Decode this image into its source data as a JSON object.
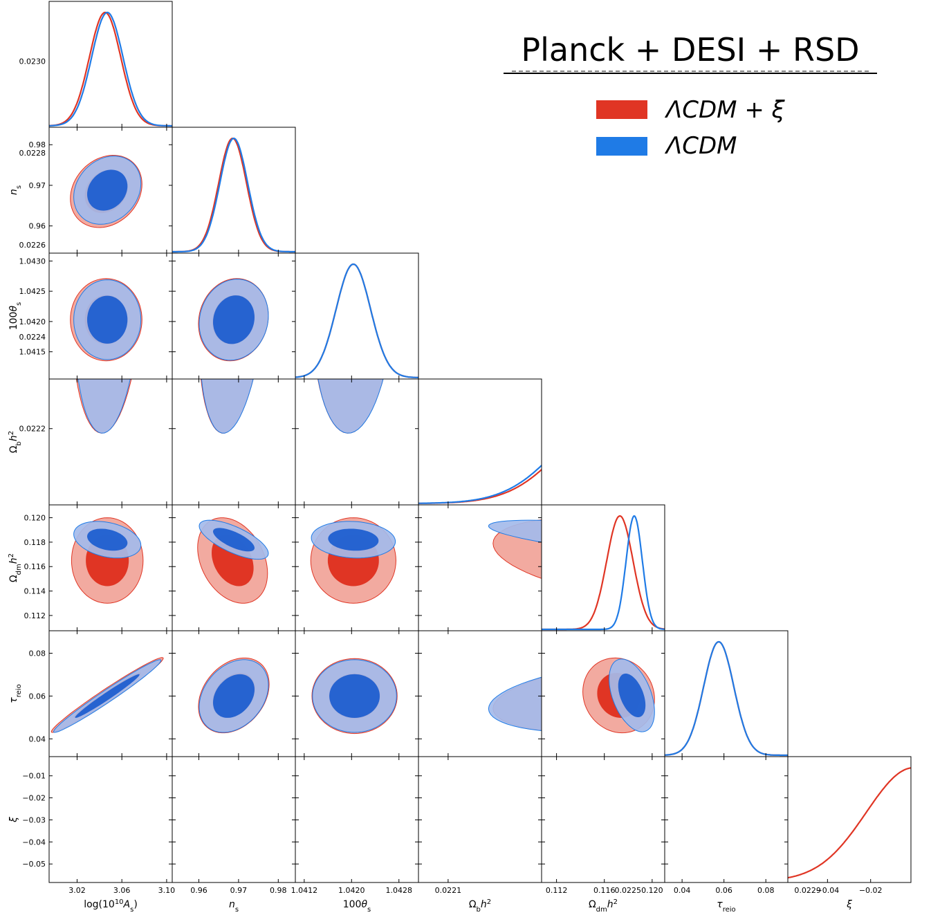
{
  "chart_data": {
    "type": "triangle-corner-plot",
    "title": "Planck + DESI + RSD",
    "legend": {
      "placement": "top-right",
      "entries": [
        {
          "label": "ΛCDM + ξ",
          "color": "#e03524"
        },
        {
          "label": "ΛCDM",
          "color": "#1f7be6"
        }
      ]
    },
    "colors": {
      "red": "#e03524",
      "red_light": "#f2aaa0",
      "blue": "#1f7be6",
      "blue_dark": "#1f5fd0",
      "blue_light": "#a4bbea"
    },
    "parameters": [
      {
        "key": "logA",
        "label": "log(10¹⁰A_s)",
        "label_main": "log(10",
        "label_sup": "10",
        "label_rest": "A",
        "label_sub": "s",
        "label_end": ")",
        "range": [
          2.995,
          3.105
        ],
        "ticks": [
          "3.02",
          "3.06",
          "3.10"
        ],
        "tick_values": [
          3.02,
          3.06,
          3.1
        ]
      },
      {
        "key": "ns",
        "label": "n_s",
        "range": [
          0.9533,
          0.9843
        ],
        "ticks": [
          "0.96",
          "0.97",
          "0.98"
        ],
        "tick_values": [
          0.96,
          0.97,
          0.98
        ]
      },
      {
        "key": "theta",
        "label": "100θ_s",
        "range": [
          1.04105,
          1.04313
        ],
        "ticks": [
          "1.0415",
          "1.0420",
          "1.0425",
          "1.0430"
        ],
        "xticks": [
          "1.0412",
          "1.0420",
          "1.0428"
        ],
        "tick_values": [
          1.0415,
          1.042,
          1.0425,
          1.043
        ],
        "xtick_values": [
          1.0412,
          1.042,
          1.0428
        ]
      },
      {
        "key": "omb",
        "label": "Ω_b h²",
        "range": [
          0.022034,
          0.022308
        ],
        "ticks": [
          "0.0222",
          "0.0224",
          "0.0226",
          "0.0228",
          "0.0230"
        ],
        "xticks": [
          "0.0221",
          "0.0225",
          "0.0229"
        ],
        "tick_values": [
          0.0222,
          0.0224,
          0.0226,
          0.0228,
          0.023
        ],
        "xtick_values": [
          0.0221,
          0.0225,
          0.0229
        ]
      },
      {
        "key": "omdm",
        "label": "Ω_dm h²",
        "range": [
          0.11075,
          0.12105
        ],
        "ticks": [
          "0.112",
          "0.114",
          "0.116",
          "0.118",
          "0.120"
        ],
        "xticks": [
          "0.112",
          "0.116",
          "0.120"
        ],
        "tick_values": [
          0.112,
          0.114,
          0.116,
          0.118,
          0.12
        ],
        "xtick_values": [
          0.112,
          0.116,
          0.12
        ]
      },
      {
        "key": "tau",
        "label": "τ_reio",
        "range": [
          0.0317,
          0.0905
        ],
        "ticks": [
          "0.04",
          "0.06",
          "0.08"
        ],
        "tick_values": [
          0.04,
          0.06,
          0.08
        ]
      },
      {
        "key": "xi",
        "label": "ξ",
        "range": [
          -0.0584,
          -0.0013
        ],
        "ticks": [
          "−0.05",
          "−0.04",
          "−0.03",
          "−0.02",
          "−0.01"
        ],
        "xticks": [
          "−0.04",
          "−0.02"
        ],
        "tick_values": [
          -0.05,
          -0.04,
          -0.03,
          -0.02,
          -0.01
        ],
        "xtick_values": [
          -0.04,
          -0.02
        ]
      }
    ],
    "posteriors_1d": {
      "LCDM_xi": [
        {
          "param": "logA",
          "mean": 3.045,
          "sigma": 0.014
        },
        {
          "param": "ns",
          "mean": 0.9685,
          "sigma": 0.0035
        },
        {
          "param": "theta",
          "mean": 1.04203,
          "sigma": 0.00029
        },
        {
          "param": "omb",
          "mean": 0.02251,
          "sigma": 0.00013
        },
        {
          "param": "omdm",
          "mean": 0.1173,
          "sigma": 0.0011
        },
        {
          "param": "tau",
          "mean": 0.0575,
          "sigma": 0.0072
        },
        {
          "param": "xi",
          "mode": 0.0,
          "sigma": 0.022,
          "note": "one-sided, peaks at ξ = 0"
        }
      ],
      "LCDM": [
        {
          "param": "logA",
          "mean": 3.047,
          "sigma": 0.014
        },
        {
          "param": "ns",
          "mean": 0.9688,
          "sigma": 0.0035
        },
        {
          "param": "theta",
          "mean": 1.04203,
          "sigma": 0.00029
        },
        {
          "param": "omb",
          "mean": 0.0225,
          "sigma": 0.00013
        },
        {
          "param": "omdm",
          "mean": 0.1185,
          "sigma": 0.00068
        },
        {
          "param": "tau",
          "mean": 0.0575,
          "sigma": 0.0072
        }
      ]
    },
    "contours_2d": [
      {
        "x": "logA",
        "y": "ns",
        "LCDM_xi": {
          "cx": 3.046,
          "cy": 0.9685,
          "rx": 0.032,
          "ry": 0.0089,
          "rho": 0.2
        },
        "LCDM": {
          "cx": 3.047,
          "cy": 0.9688,
          "rx": 0.03,
          "ry": 0.0084,
          "rho": 0.2
        }
      },
      {
        "x": "logA",
        "y": "theta",
        "LCDM_xi": {
          "cx": 3.046,
          "cy": 1.04203,
          "rx": 0.032,
          "ry": 0.00068,
          "rho": 0.0
        },
        "LCDM": {
          "cx": 3.047,
          "cy": 1.04203,
          "rx": 0.03,
          "ry": 0.00066,
          "rho": 0.0
        }
      },
      {
        "x": "logA",
        "y": "omb",
        "LCDM_xi": {
          "cx": 3.047,
          "cy": 0.02251,
          "rx": 0.032,
          "ry": 0.00032,
          "rho": 0.15
        },
        "LCDM": {
          "cx": 3.047,
          "cy": 0.0225,
          "rx": 0.03,
          "ry": 0.00031,
          "rho": 0.15
        }
      },
      {
        "x": "logA",
        "y": "omdm",
        "LCDM_xi": {
          "cx": 3.047,
          "cy": 0.1165,
          "rx": 0.032,
          "ry": 0.0035,
          "rho": 0.0
        },
        "LCDM": {
          "cx": 3.047,
          "cy": 0.1182,
          "rx": 0.03,
          "ry": 0.0015,
          "rho": -0.3
        }
      },
      {
        "x": "logA",
        "y": "tau",
        "LCDM_xi": {
          "cx": 3.047,
          "cy": 0.0605,
          "rx": 0.05,
          "ry": 0.0175,
          "rho": 0.98
        },
        "LCDM": {
          "cx": 3.047,
          "cy": 0.06,
          "rx": 0.048,
          "ry": 0.017,
          "rho": 0.98
        }
      },
      {
        "x": "logA",
        "y": "xi",
        "LCDM_xi": {
          "cx": 3.047,
          "floor": -0.041,
          "inner_floor": -0.0245,
          "rx": 0.031
        }
      },
      {
        "x": "ns",
        "y": "theta",
        "LCDM_xi": {
          "cx": 0.9687,
          "cy": 1.04203,
          "rx": 0.0088,
          "ry": 0.00068,
          "rho": 0.1
        },
        "LCDM": {
          "cx": 0.9688,
          "cy": 1.04203,
          "rx": 0.0087,
          "ry": 0.00067,
          "rho": 0.1
        }
      },
      {
        "x": "ns",
        "y": "omb",
        "LCDM_xi": {
          "cx": 0.9688,
          "cy": 0.02251,
          "rx": 0.0089,
          "ry": 0.00032,
          "rho": 0.3
        },
        "LCDM": {
          "cx": 0.9688,
          "cy": 0.0225,
          "rx": 0.0087,
          "ry": 0.00031,
          "rho": 0.3
        }
      },
      {
        "x": "ns",
        "y": "omdm",
        "LCDM_xi": {
          "cx": 0.9685,
          "cy": 0.1165,
          "rx": 0.0088,
          "ry": 0.0035,
          "rho": -0.3
        },
        "LCDM": {
          "cx": 0.9688,
          "cy": 0.1182,
          "rx": 0.0087,
          "ry": 0.0016,
          "rho": -0.7
        }
      },
      {
        "x": "ns",
        "y": "tau",
        "LCDM_xi": {
          "cx": 0.9688,
          "cy": 0.0603,
          "rx": 0.0089,
          "ry": 0.0175,
          "rho": 0.3
        },
        "LCDM": {
          "cx": 0.9688,
          "cy": 0.06,
          "rx": 0.0087,
          "ry": 0.017,
          "rho": 0.3
        }
      },
      {
        "x": "ns",
        "y": "xi",
        "LCDM_xi": {
          "cx": 0.9688,
          "floor": -0.041,
          "inner_floor": -0.0235,
          "rx": 0.0088
        }
      },
      {
        "x": "theta",
        "y": "omb",
        "LCDM_xi": {
          "cx": 1.04205,
          "cy": 0.02251,
          "rx": 0.00072,
          "ry": 0.00032,
          "rho": 0.15
        },
        "LCDM": {
          "cx": 1.04205,
          "cy": 0.0225,
          "rx": 0.00071,
          "ry": 0.00031,
          "rho": 0.15
        }
      },
      {
        "x": "theta",
        "y": "omdm",
        "LCDM_xi": {
          "cx": 1.04203,
          "cy": 0.1165,
          "rx": 0.00072,
          "ry": 0.0035,
          "rho": 0.0
        },
        "LCDM": {
          "cx": 1.04203,
          "cy": 0.1182,
          "rx": 0.00071,
          "ry": 0.0015,
          "rho": -0.1
        }
      },
      {
        "x": "theta",
        "y": "tau",
        "LCDM_xi": {
          "cx": 1.04205,
          "cy": 0.06,
          "rx": 0.00072,
          "ry": 0.0175,
          "rho": 0.0
        },
        "LCDM": {
          "cx": 1.04205,
          "cy": 0.06,
          "rx": 0.00071,
          "ry": 0.017,
          "rho": 0.0
        }
      },
      {
        "x": "theta",
        "y": "xi",
        "LCDM_xi": {
          "cx": 1.04205,
          "floor": -0.041,
          "inner_floor": -0.0235,
          "rx": 0.00072
        }
      },
      {
        "x": "omb",
        "y": "omdm",
        "LCDM_xi": {
          "cx": 0.02252,
          "cy": 0.1165,
          "rx": 0.00032,
          "ry": 0.0035,
          "rho": -0.4
        },
        "LCDM": {
          "cx": 0.0225,
          "cy": 0.1182,
          "rx": 0.00031,
          "ry": 0.0016,
          "rho": -0.7
        }
      },
      {
        "x": "omb",
        "y": "tau",
        "LCDM_xi": {
          "cx": 0.02252,
          "cy": 0.0603,
          "rx": 0.00032,
          "ry": 0.0175,
          "rho": 0.35
        },
        "LCDM": {
          "cx": 0.0225,
          "cy": 0.06,
          "rx": 0.00031,
          "ry": 0.017,
          "rho": 0.35
        }
      },
      {
        "x": "omb",
        "y": "xi",
        "LCDM_xi": {
          "cx": 0.02252,
          "floor": -0.041,
          "inner_floor": -0.0235,
          "rx": 0.00032
        }
      },
      {
        "x": "omdm",
        "y": "tau",
        "LCDM_xi": {
          "cx": 0.1172,
          "cy": 0.0603,
          "rx": 0.003,
          "ry": 0.0175,
          "rho": -0.1
        },
        "LCDM": {
          "cx": 0.1183,
          "cy": 0.0603,
          "rx": 0.0019,
          "ry": 0.017,
          "rho": -0.45
        }
      },
      {
        "x": "omdm",
        "y": "xi",
        "LCDM_xi": {
          "cx": 0.1165,
          "floor": -0.041,
          "inner_floor": -0.0235,
          "rx": 0.003,
          "rho": 0.85
        }
      },
      {
        "x": "tau",
        "y": "xi",
        "LCDM_xi": {
          "cx": 0.0603,
          "floor": -0.041,
          "inner_floor": -0.0235,
          "rx": 0.0175
        }
      }
    ]
  }
}
